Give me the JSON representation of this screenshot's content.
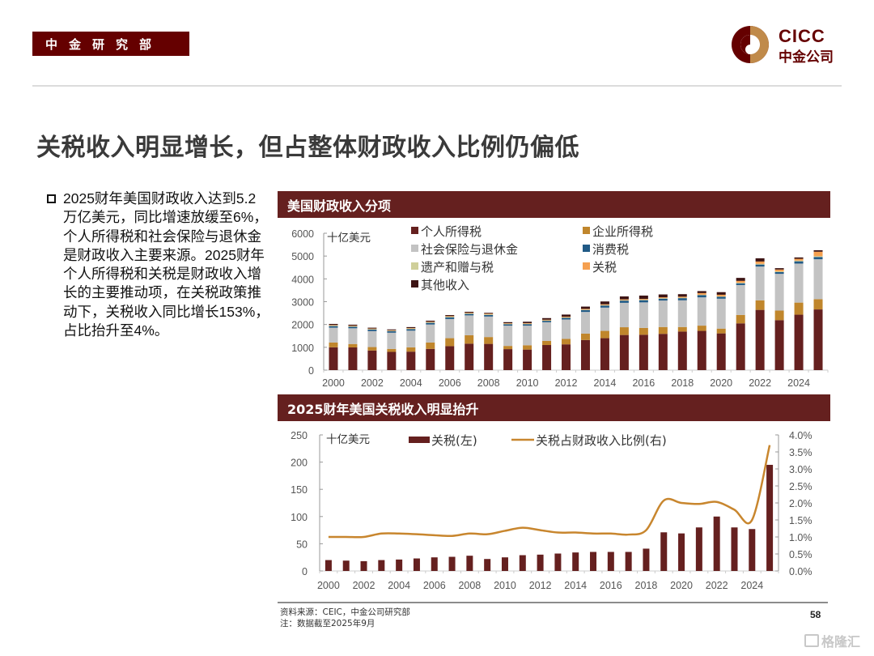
{
  "header": {
    "dept_tag": "中金研究部",
    "logo_en": "CICC",
    "logo_cn": "中金公司",
    "brand_colors": {
      "dark": "#650000",
      "gold": "#c08a4a"
    }
  },
  "title": "关税收入明显增长，但占整体财政收入比例仍偏低",
  "bullet": "2025财年美国财政收入达到5.2万亿美元，同比增速放缓至6%，个人所得税和社会保险与退休金是财政收入主要来源。2025财年个人所得税和关税是财政收入增长的主要推动项，在关税政策推动下，关税收入同比增长153%，占比抬升至4%。",
  "footer": {
    "source": "资料来源：CEIC，中金公司研究部",
    "note": "注：数据截至2025年9月",
    "page": "58",
    "watermark": "格隆汇"
  },
  "chart_data": [
    {
      "type": "bar",
      "stacked": true,
      "title": "美国财政收入分项",
      "unit_label": "十亿美元",
      "ylim": [
        0,
        6000
      ],
      "yticks": [
        "0",
        "1000",
        "2000",
        "3000",
        "4000",
        "5000",
        "6000"
      ],
      "x": [
        2000,
        2001,
        2002,
        2003,
        2004,
        2005,
        2006,
        2007,
        2008,
        2009,
        2010,
        2011,
        2012,
        2013,
        2014,
        2015,
        2016,
        2017,
        2018,
        2019,
        2020,
        2021,
        2022,
        2023,
        2024,
        2025
      ],
      "xticks": [
        "2000",
        "2002",
        "2004",
        "2006",
        "2008",
        "2010",
        "2012",
        "2014",
        "2016",
        "2018",
        "2020",
        "2022",
        "2024"
      ],
      "legend_position": "top",
      "series": [
        {
          "name": "个人所得税",
          "color": "#65201f",
          "values": [
            1000,
            995,
            860,
            800,
            810,
            930,
            1050,
            1160,
            1150,
            920,
            900,
            1100,
            1130,
            1320,
            1400,
            1540,
            1550,
            1590,
            1690,
            1720,
            1610,
            2050,
            2640,
            2190,
            2430,
            2660
          ]
        },
        {
          "name": "企业所得税",
          "color": "#c0862c",
          "values": [
            210,
            150,
            150,
            130,
            190,
            280,
            350,
            370,
            300,
            140,
            190,
            180,
            240,
            280,
            320,
            340,
            300,
            300,
            200,
            230,
            210,
            370,
            420,
            420,
            530,
            450
          ]
        },
        {
          "name": "社会保险与退休金",
          "color": "#c3c3c3",
          "values": [
            650,
            690,
            700,
            710,
            730,
            790,
            840,
            870,
            900,
            890,
            860,
            820,
            850,
            950,
            1020,
            1070,
            1120,
            1160,
            1170,
            1240,
            1310,
            1310,
            1480,
            1610,
            1710,
            1750
          ]
        },
        {
          "name": "消费税",
          "color": "#215a86",
          "values": [
            70,
            66,
            67,
            67,
            70,
            73,
            74,
            65,
            67,
            62,
            67,
            72,
            80,
            84,
            93,
            98,
            95,
            84,
            95,
            99,
            87,
            75,
            88,
            76,
            100,
            100
          ]
        },
        {
          "name": "遗产和赠与税",
          "color": "#cfcf9a",
          "values": [
            29,
            28,
            27,
            22,
            25,
            25,
            28,
            26,
            29,
            23,
            19,
            9,
            14,
            19,
            19,
            19,
            21,
            23,
            23,
            17,
            18,
            27,
            33,
            34,
            32,
            35
          ]
        },
        {
          "name": "关税",
          "color": "#f5a050",
          "values": [
            20,
            19,
            18,
            20,
            21,
            23,
            25,
            26,
            28,
            22,
            25,
            29,
            30,
            32,
            34,
            35,
            35,
            35,
            41,
            71,
            69,
            80,
            100,
            80,
            77,
            195
          ]
        },
        {
          "name": "其他收入",
          "color": "#3d1414",
          "values": [
            46,
            43,
            38,
            36,
            40,
            46,
            45,
            40,
            36,
            46,
            60,
            70,
            91,
            100,
            124,
            129,
            147,
            126,
            111,
            87,
            114,
            131,
            142,
            60,
            61,
            65
          ]
        }
      ]
    },
    {
      "type": "bar+line",
      "title": "2025财年美国关税收入明显抬升",
      "unit_label": "十亿美元",
      "ylim_left": [
        0,
        250
      ],
      "ylim_right": [
        0,
        4.0
      ],
      "yticks_left": [
        "0",
        "50",
        "100",
        "150",
        "200",
        "250"
      ],
      "yticks_right": [
        "0.0%",
        "0.5%",
        "1.0%",
        "1.5%",
        "2.0%",
        "2.5%",
        "3.0%",
        "3.5%",
        "4.0%"
      ],
      "x": [
        2000,
        2001,
        2002,
        2003,
        2004,
        2005,
        2006,
        2007,
        2008,
        2009,
        2010,
        2011,
        2012,
        2013,
        2014,
        2015,
        2016,
        2017,
        2018,
        2019,
        2020,
        2021,
        2022,
        2023,
        2024,
        2025
      ],
      "xticks": [
        "2000",
        "2002",
        "2004",
        "2006",
        "2008",
        "2010",
        "2012",
        "2014",
        "2016",
        "2018",
        "2020",
        "2022",
        "2024"
      ],
      "legend_position": "top",
      "series": [
        {
          "name": "关税(左)",
          "type": "bar",
          "axis": "left",
          "color": "#65201f",
          "values": [
            20,
            19,
            18,
            20,
            21,
            23,
            25,
            26,
            28,
            22,
            25,
            29,
            30,
            32,
            34,
            35,
            35,
            35,
            41,
            71,
            69,
            80,
            100,
            80,
            77,
            195
          ]
        },
        {
          "name": "关税占财政收入比例(右)",
          "type": "line",
          "axis": "right",
          "color": "#c8862e",
          "values": [
            1.0,
            1.0,
            1.0,
            1.1,
            1.1,
            1.08,
            1.05,
            1.03,
            1.1,
            1.08,
            1.18,
            1.27,
            1.2,
            1.13,
            1.13,
            1.1,
            1.1,
            1.07,
            1.2,
            2.07,
            2.0,
            1.97,
            2.03,
            1.8,
            1.5,
            3.7
          ]
        }
      ]
    }
  ]
}
